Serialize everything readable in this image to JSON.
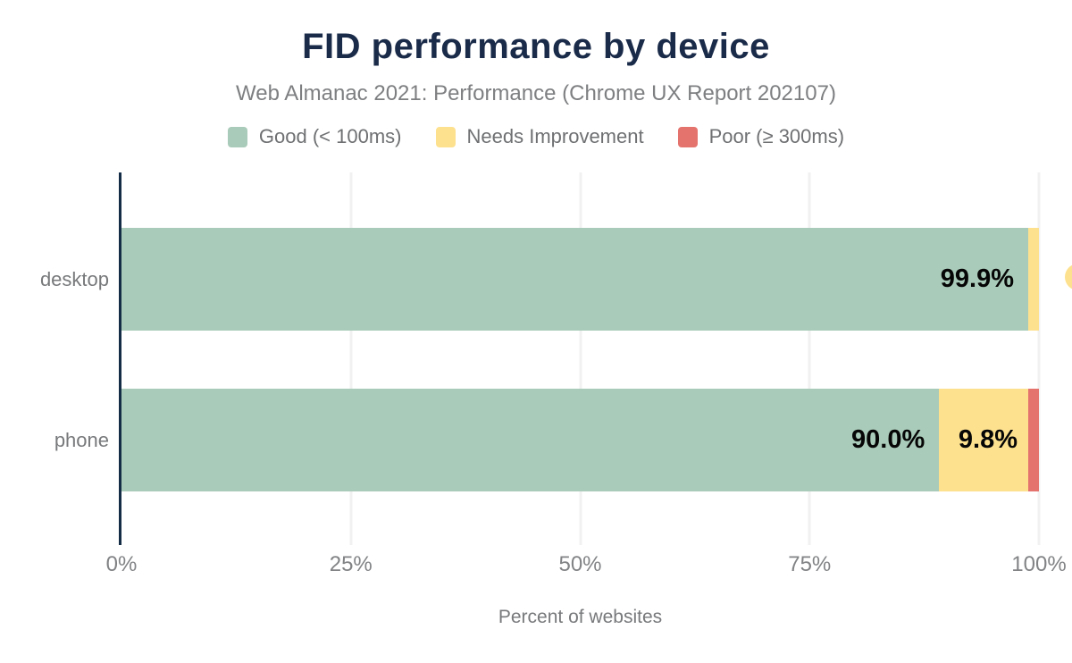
{
  "chart_data": {
    "type": "bar",
    "orientation": "horizontal",
    "stacked": true,
    "title": "FID performance by device",
    "subtitle": "Web Almanac 2021: Performance (Chrome UX Report 202107)",
    "categories": [
      "desktop",
      "phone"
    ],
    "series": [
      {
        "name": "Good (< 100ms)",
        "color": "#a9cbb9",
        "values": [
          99.9,
          90.0
        ],
        "labels": [
          "99.9%",
          "90.0%"
        ]
      },
      {
        "name": "Needs Improvement",
        "color": "#fde18f",
        "values": [
          0.1,
          9.8
        ],
        "labels": [
          "",
          "9.8%"
        ]
      },
      {
        "name": "Poor (≥ 300ms)",
        "color": "#e4736e",
        "values": [
          0.0,
          0.2
        ],
        "labels": [
          "",
          ""
        ]
      }
    ],
    "xlabel": "Percent of websites",
    "xlim": [
      0,
      100
    ],
    "x_ticks": [
      {
        "label": "0%",
        "pct": 0
      },
      {
        "label": "25%",
        "pct": 25
      },
      {
        "label": "50%",
        "pct": 50
      },
      {
        "label": "75%",
        "pct": 75
      },
      {
        "label": "100%",
        "pct": 100
      }
    ],
    "grid": "vertical-light",
    "legend_position": "top"
  },
  "style_colors": {
    "title": "#1a2b49",
    "subtitle_text": "#7d7f81",
    "axis_line": "#152c46",
    "gridline": "#f1f1f1",
    "tick_text": "#818385",
    "bar_value_text": "#060606",
    "edge_marker": "#fde18f"
  }
}
